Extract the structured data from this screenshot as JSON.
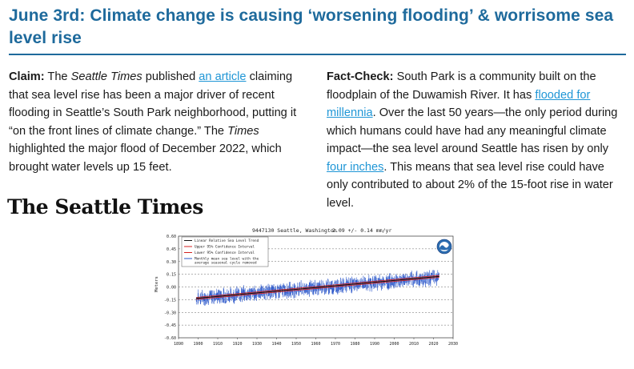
{
  "header": {
    "title": "June 3rd: Climate change is causing ‘worsening flooding’ & worrisome sea level rise"
  },
  "claim": {
    "label": "Claim:",
    "t1": " The ",
    "pub": "Seattle Times",
    "t2": " published ",
    "link": "an article",
    "t3": " claiming that sea level rise has been a major driver of recent flooding in Seattle’s South Park neighborhood, putting it “on the front lines of climate change.” The ",
    "pub2": "Times",
    "t4": " highlighted the major flood of December 2022, which brought water levels up 15 feet."
  },
  "logo": {
    "text": "The Seattle Times"
  },
  "factcheck": {
    "label": "Fact-Check:",
    "t1": " South Park is a community built on the floodplain of the Duwamish River. It has ",
    "link1": "flooded for millennia",
    "t2": ". Over the last 50 years—the only period during which humans could have had any meaningful climate impact—the sea level around Seattle has risen by only ",
    "link2": "four inches",
    "t3": ". This means that sea level rise could have only contributed to about 2% of the 15-foot rise in water level."
  },
  "colors": {
    "title": "#1e6a9c",
    "link": "#1f96d6",
    "monthly": "#2b57c9",
    "trend": "#111111",
    "confidence": "#d42020"
  },
  "chart_data": {
    "type": "line",
    "title": "9447130 Seattle, Washington",
    "subtitle": "2.09 +/- 0.14 mm/yr",
    "ylabel": "Meters",
    "xlim": [
      1890,
      2030
    ],
    "ylim": [
      -0.6,
      0.6
    ],
    "x_ticks": [
      "1890",
      "1900",
      "1910",
      "1920",
      "1930",
      "1940",
      "1950",
      "1960",
      "1970",
      "1980",
      "1990",
      "2000",
      "2010",
      "2020",
      "2030"
    ],
    "y_ticks": [
      "0.60",
      "0.45",
      "0.30",
      "0.15",
      "0.00",
      "-0.15",
      "-0.30",
      "-0.45",
      "-0.60"
    ],
    "legend": [
      "Linear Relative Sea Level Trend",
      "Upper 95% Confidence Interval",
      "Lower 95% Confidence Interval",
      "Monthly mean sea level with the average seasonal cycle removed"
    ],
    "trend": {
      "x": [
        1899,
        2023
      ],
      "y": [
        -0.135,
        0.125
      ]
    },
    "series": [
      {
        "name": "Monthly mean sea level with the average seasonal cycle removed",
        "x": [
          1899,
          1905,
          1910,
          1915,
          1920,
          1925,
          1930,
          1935,
          1940,
          1945,
          1950,
          1955,
          1960,
          1965,
          1970,
          1975,
          1980,
          1985,
          1990,
          1995,
          2000,
          2005,
          2010,
          2015,
          2020,
          2023
        ],
        "values": [
          -0.13,
          -0.12,
          -0.11,
          -0.1,
          -0.09,
          -0.08,
          -0.07,
          -0.06,
          -0.05,
          -0.04,
          -0.03,
          -0.02,
          -0.01,
          0.0,
          0.01,
          0.02,
          0.03,
          0.04,
          0.05,
          0.06,
          0.07,
          0.08,
          0.09,
          0.1,
          0.11,
          0.12
        ]
      }
    ]
  }
}
